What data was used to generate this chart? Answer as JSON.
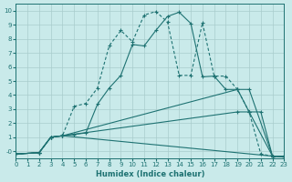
{
  "xlabel": "Humidex (Indice chaleur)",
  "xlim": [
    0,
    23
  ],
  "ylim": [
    -0.5,
    10.5
  ],
  "xticks": [
    0,
    1,
    2,
    3,
    4,
    5,
    6,
    7,
    8,
    9,
    10,
    11,
    12,
    13,
    14,
    15,
    16,
    17,
    18,
    19,
    20,
    21,
    22,
    23
  ],
  "yticks": [
    0,
    1,
    2,
    3,
    4,
    5,
    6,
    7,
    8,
    9,
    10
  ],
  "ytick_labels": [
    "-0",
    "1",
    "2",
    "3",
    "4",
    "5",
    "6",
    "7",
    "8",
    "9",
    "10"
  ],
  "bg_color": "#c9eaea",
  "grid_color": "#a8cccc",
  "line_color": "#1e7272",
  "line1": {
    "x": [
      0,
      2,
      3,
      4,
      5,
      6,
      7,
      8,
      9,
      10,
      11,
      12,
      13,
      14,
      15,
      16,
      17,
      18,
      19,
      20,
      21,
      22,
      23
    ],
    "y": [
      -0.2,
      -0.1,
      1.0,
      1.1,
      3.2,
      3.4,
      4.5,
      7.5,
      8.6,
      7.8,
      9.7,
      9.95,
      9.2,
      5.4,
      5.4,
      9.15,
      5.35,
      5.35,
      4.4,
      2.8,
      -0.2,
      -0.35,
      -0.35
    ]
  },
  "line2": {
    "x": [
      0,
      2,
      3,
      4,
      5,
      6,
      7,
      8,
      9,
      10,
      11,
      12,
      13,
      14,
      15,
      16,
      17,
      18,
      19,
      20,
      21,
      22,
      23
    ],
    "y": [
      -0.2,
      -0.1,
      1.0,
      1.1,
      1.2,
      1.3,
      3.35,
      4.5,
      5.4,
      7.6,
      7.5,
      8.6,
      9.6,
      9.9,
      9.1,
      5.3,
      5.35,
      4.4,
      4.4,
      2.8,
      2.8,
      -0.35,
      -0.35
    ]
  },
  "line3": {
    "x": [
      0,
      2,
      3,
      4,
      22,
      23
    ],
    "y": [
      -0.2,
      -0.1,
      1.0,
      1.1,
      -0.35,
      -0.4
    ]
  },
  "line4": {
    "x": [
      0,
      2,
      3,
      4,
      19,
      20,
      22,
      23
    ],
    "y": [
      -0.2,
      -0.1,
      1.0,
      1.1,
      2.8,
      2.8,
      -0.35,
      -0.4
    ]
  },
  "line5": {
    "x": [
      0,
      2,
      3,
      4,
      19,
      20,
      22,
      23
    ],
    "y": [
      -0.2,
      -0.1,
      1.0,
      1.1,
      4.4,
      4.4,
      -0.35,
      -0.4
    ]
  }
}
